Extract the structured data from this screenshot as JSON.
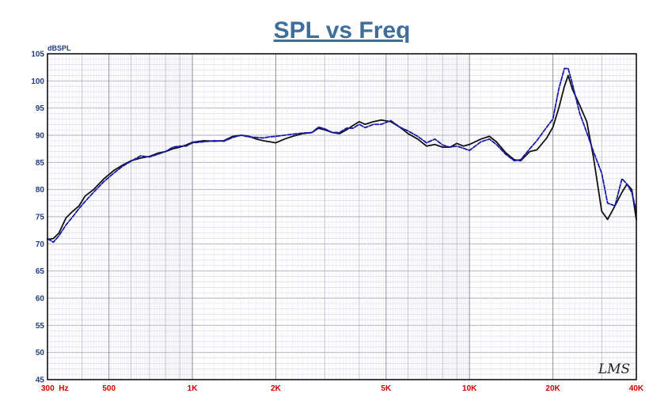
{
  "chart_data": {
    "type": "line",
    "title": "SPL vs Freq",
    "ylabel": "dBSPL",
    "watermark": "LMS",
    "x_scale": "log",
    "xlim": [
      300,
      40000
    ],
    "ylim": [
      45,
      105
    ],
    "grid": true,
    "y_ticks": [
      "105",
      "100",
      "95",
      "90",
      "85",
      "80",
      "75",
      "70",
      "65",
      "60",
      "55",
      "50",
      "45"
    ],
    "x_ticks": [
      {
        "value": 300,
        "label": "300  Hz"
      },
      {
        "value": 500,
        "label": "500"
      },
      {
        "value": 1000,
        "label": "1K"
      },
      {
        "value": 2000,
        "label": "2K"
      },
      {
        "value": 5000,
        "label": "5K"
      },
      {
        "value": 10000,
        "label": "10K"
      },
      {
        "value": 20000,
        "label": "20K"
      },
      {
        "value": 40000,
        "label": "40K"
      }
    ],
    "series": [
      {
        "color": "#111111",
        "style": "solid",
        "points": [
          [
            300,
            70.8
          ],
          [
            315,
            71.0
          ],
          [
            330,
            72.0
          ],
          [
            350,
            74.8
          ],
          [
            370,
            76.0
          ],
          [
            390,
            77.0
          ],
          [
            410,
            78.8
          ],
          [
            440,
            80.0
          ],
          [
            480,
            82.0
          ],
          [
            520,
            83.5
          ],
          [
            560,
            84.5
          ],
          [
            600,
            85.3
          ],
          [
            650,
            85.8
          ],
          [
            700,
            86.1
          ],
          [
            750,
            86.7
          ],
          [
            800,
            87.0
          ],
          [
            850,
            87.5
          ],
          [
            900,
            87.8
          ],
          [
            950,
            88.2
          ],
          [
            1000,
            88.7
          ],
          [
            1100,
            89.0
          ],
          [
            1200,
            88.9
          ],
          [
            1300,
            89.0
          ],
          [
            1400,
            89.8
          ],
          [
            1500,
            90.0
          ],
          [
            1600,
            89.8
          ],
          [
            1700,
            89.3
          ],
          [
            1800,
            89.0
          ],
          [
            1900,
            88.8
          ],
          [
            2000,
            88.6
          ],
          [
            2150,
            89.3
          ],
          [
            2300,
            89.8
          ],
          [
            2500,
            90.3
          ],
          [
            2700,
            90.5
          ],
          [
            2850,
            91.3
          ],
          [
            3000,
            91.0
          ],
          [
            3200,
            90.5
          ],
          [
            3400,
            90.3
          ],
          [
            3600,
            91.0
          ],
          [
            3800,
            91.8
          ],
          [
            4000,
            92.5
          ],
          [
            4200,
            92.0
          ],
          [
            4500,
            92.5
          ],
          [
            4800,
            92.8
          ],
          [
            5200,
            92.5
          ],
          [
            5600,
            91.5
          ],
          [
            6000,
            90.3
          ],
          [
            6500,
            89.3
          ],
          [
            7000,
            88.0
          ],
          [
            7500,
            88.3
          ],
          [
            8000,
            87.8
          ],
          [
            8500,
            87.8
          ],
          [
            9000,
            88.5
          ],
          [
            9500,
            88.0
          ],
          [
            10000,
            88.3
          ],
          [
            11000,
            89.3
          ],
          [
            11800,
            89.8
          ],
          [
            12500,
            88.8
          ],
          [
            13500,
            86.8
          ],
          [
            14500,
            85.5
          ],
          [
            15300,
            85.3
          ],
          [
            16500,
            87.0
          ],
          [
            17500,
            87.3
          ],
          [
            19000,
            89.5
          ],
          [
            20000,
            91.5
          ],
          [
            21000,
            95.0
          ],
          [
            22000,
            99.0
          ],
          [
            22700,
            101.0
          ],
          [
            23500,
            98.5
          ],
          [
            25000,
            95.5
          ],
          [
            26500,
            92.5
          ],
          [
            28000,
            86.0
          ],
          [
            30000,
            76.0
          ],
          [
            31500,
            74.5
          ],
          [
            33500,
            77.0
          ],
          [
            35500,
            79.5
          ],
          [
            37000,
            81.0
          ],
          [
            38500,
            80.0
          ],
          [
            40000,
            74.5
          ]
        ]
      },
      {
        "color": "#1a1aa8",
        "style": "dashed",
        "points": [
          [
            300,
            71.0
          ],
          [
            315,
            70.3
          ],
          [
            330,
            71.5
          ],
          [
            350,
            73.5
          ],
          [
            370,
            75.0
          ],
          [
            390,
            76.5
          ],
          [
            410,
            77.8
          ],
          [
            440,
            79.5
          ],
          [
            480,
            81.5
          ],
          [
            520,
            83.0
          ],
          [
            560,
            84.3
          ],
          [
            600,
            85.2
          ],
          [
            650,
            86.2
          ],
          [
            700,
            86.0
          ],
          [
            750,
            86.5
          ],
          [
            800,
            87.0
          ],
          [
            850,
            87.8
          ],
          [
            900,
            88.0
          ],
          [
            950,
            88.0
          ],
          [
            1000,
            88.6
          ],
          [
            1100,
            88.8
          ],
          [
            1200,
            89.0
          ],
          [
            1300,
            88.9
          ],
          [
            1400,
            89.6
          ],
          [
            1500,
            90.0
          ],
          [
            1600,
            89.7
          ],
          [
            1700,
            89.6
          ],
          [
            1800,
            89.5
          ],
          [
            1900,
            89.7
          ],
          [
            2000,
            89.8
          ],
          [
            2150,
            90.0
          ],
          [
            2300,
            90.2
          ],
          [
            2500,
            90.4
          ],
          [
            2700,
            90.5
          ],
          [
            2850,
            91.5
          ],
          [
            3000,
            91.2
          ],
          [
            3200,
            90.5
          ],
          [
            3400,
            90.5
          ],
          [
            3600,
            91.3
          ],
          [
            3800,
            91.3
          ],
          [
            4000,
            92.0
          ],
          [
            4200,
            91.4
          ],
          [
            4500,
            92.0
          ],
          [
            4800,
            92.0
          ],
          [
            5200,
            92.7
          ],
          [
            5600,
            91.5
          ],
          [
            6000,
            90.8
          ],
          [
            6500,
            89.8
          ],
          [
            7000,
            88.6
          ],
          [
            7500,
            89.3
          ],
          [
            8000,
            88.2
          ],
          [
            8500,
            87.8
          ],
          [
            9000,
            88.0
          ],
          [
            9500,
            87.6
          ],
          [
            10000,
            87.2
          ],
          [
            11000,
            88.8
          ],
          [
            11800,
            89.3
          ],
          [
            12500,
            88.3
          ],
          [
            13500,
            86.5
          ],
          [
            14500,
            85.3
          ],
          [
            15300,
            85.5
          ],
          [
            16500,
            87.5
          ],
          [
            17500,
            89.0
          ],
          [
            19000,
            91.5
          ],
          [
            20000,
            93.0
          ],
          [
            21000,
            98.5
          ],
          [
            22000,
            102.3
          ],
          [
            22700,
            102.3
          ],
          [
            23500,
            99.5
          ],
          [
            25000,
            94.0
          ],
          [
            26500,
            90.5
          ],
          [
            28000,
            87.0
          ],
          [
            30000,
            83.0
          ],
          [
            31500,
            77.5
          ],
          [
            33500,
            77.0
          ],
          [
            35500,
            82.0
          ],
          [
            37000,
            81.0
          ],
          [
            38500,
            79.5
          ],
          [
            40000,
            76.0
          ]
        ]
      }
    ]
  }
}
